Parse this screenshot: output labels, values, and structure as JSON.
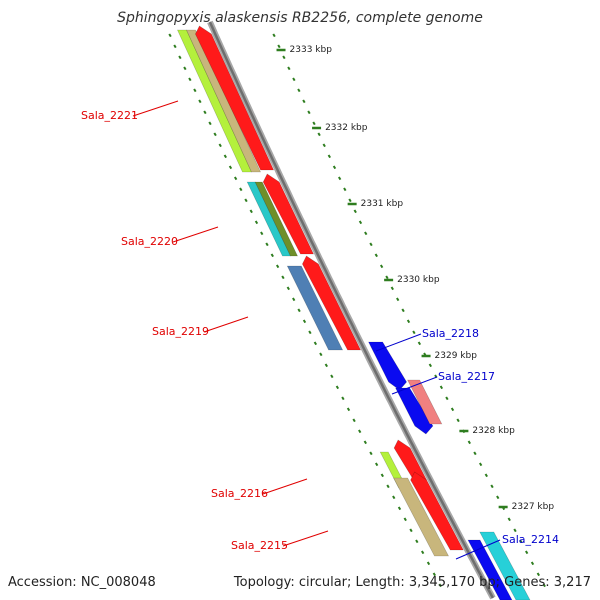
{
  "title": "Sphingopyxis alaskensis RB2256, complete genome",
  "footer": {
    "accession": "Accession: NC_008048",
    "topology": "Topology: circular; Length: 3,345,170 bp; Genes: 3,217"
  },
  "colors": {
    "backbone": "#8a8a8a",
    "tick": "#2e7d1f",
    "label_reverse": "#e00000",
    "label_forward": "#0000cc"
  },
  "ruler_labels": [
    "2333 kbp",
    "2332 kbp",
    "2331 kbp",
    "2330 kbp",
    "2329 kbp",
    "2328 kbp",
    "2327 kbp"
  ],
  "genes": [
    {
      "label": "Sala_2221",
      "strand": "reverse"
    },
    {
      "label": "Sala_2220",
      "strand": "reverse"
    },
    {
      "label": "Sala_2219",
      "strand": "reverse"
    },
    {
      "label": "Sala_2218",
      "strand": "forward"
    },
    {
      "label": "Sala_2217",
      "strand": "forward"
    },
    {
      "label": "Sala_2216",
      "strand": "reverse"
    },
    {
      "label": "Sala_2215",
      "strand": "reverse"
    },
    {
      "label": "Sala_2214",
      "strand": "forward"
    }
  ]
}
